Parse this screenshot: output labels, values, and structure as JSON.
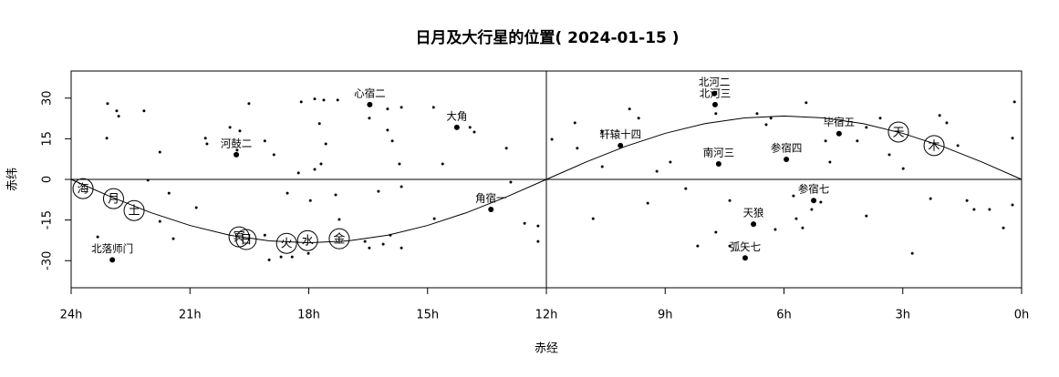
{
  "chart_data": {
    "type": "scatter",
    "title": "日月及大行星的位置( 2024-01-15 )",
    "x_label": "赤经",
    "y_label": "赤纬",
    "xlim": [
      24,
      0
    ],
    "ylim": [
      -40,
      40
    ],
    "xticks": [
      {
        "value": 24,
        "label": "24h"
      },
      {
        "value": 21,
        "label": "21h"
      },
      {
        "value": 18,
        "label": "18h"
      },
      {
        "value": 15,
        "label": "15h"
      },
      {
        "value": 12,
        "label": "12h"
      },
      {
        "value": 9,
        "label": "9h"
      },
      {
        "value": 6,
        "label": "6h"
      },
      {
        "value": 3,
        "label": "3h"
      },
      {
        "value": 0,
        "label": "0h"
      }
    ],
    "yticks": [
      -30,
      -15,
      0,
      15,
      30
    ],
    "reference_lines": {
      "x": 12,
      "y": 0
    },
    "color": "#000000",
    "ecliptic": {
      "x": [
        0,
        1,
        2,
        3,
        4,
        5,
        6,
        7,
        8,
        9,
        10,
        11,
        12,
        13,
        14,
        15,
        16,
        17,
        18,
        19,
        20,
        21,
        22,
        23,
        24
      ],
      "y": [
        0,
        6.4,
        12.2,
        17.0,
        20.6,
        22.7,
        23.4,
        22.7,
        20.6,
        17.0,
        12.2,
        6.4,
        0,
        -6.4,
        -12.2,
        -17.0,
        -20.6,
        -22.7,
        -23.4,
        -22.7,
        -20.6,
        -17.0,
        -12.2,
        -6.4,
        0
      ]
    },
    "background": {
      "x": [
        23.08,
        22.85,
        22.8,
        22.16,
        23.1,
        21.76,
        22.06,
        21.53,
        21.76,
        21.42,
        23.33,
        20.84,
        20.61,
        20.57,
        19.99,
        19.74,
        19.81,
        19.11,
        19.51,
        18.88,
        18.19,
        17.85,
        17.62,
        17.27,
        17.73,
        17.57,
        17.85,
        17.69,
        18.26,
        18.54,
        17.96,
        17.32,
        17.23,
        19.11,
        19.0,
        18.7,
        18.42,
        18.01,
        16.47,
        16.01,
        16.01,
        15.66,
        15.89,
        15.71,
        16.24,
        15.66,
        15.94,
        16.12,
        16.58,
        16.47,
        15.66,
        14.83,
        14.85,
        14.62,
        13.93,
        13.82,
        13.01,
        12.9,
        12.55,
        12.21,
        12.21,
        11.86,
        11.28,
        11.22,
        10.59,
        10.59,
        10.82,
        9.9,
        9.67,
        9.44,
        9.21,
        8.87,
        8.48,
        8.18,
        7.72,
        7.37,
        6.68,
        6.45,
        6.33,
        6.22,
        5.76,
        5.69,
        5.53,
        5.3,
        5.07,
        5.44,
        4.84,
        4.15,
        3.92,
        3.57,
        3.34,
        2.99,
        2.3,
        2.07,
        1.89,
        1.61,
        1.38,
        1.2,
        0.81,
        0.46,
        0.18,
        0.23,
        0.23,
        2.76,
        7.72,
        7.37,
        3.92,
        4.95
      ],
      "y": [
        28.0,
        25.3,
        23.3,
        25.3,
        15.2,
        10.1,
        -0.3,
        -5.1,
        -15.5,
        -21.9,
        -21.2,
        -10.4,
        15.2,
        13.1,
        19.2,
        17.9,
        10.8,
        14.2,
        28.0,
        9.1,
        28.6,
        29.7,
        29.3,
        29.3,
        20.6,
        13.1,
        3.7,
        5.7,
        2.4,
        -5.1,
        -7.8,
        -5.7,
        -14.8,
        -20.6,
        -29.7,
        -28.6,
        -28.6,
        -27.3,
        22.6,
        26.0,
        18.2,
        26.6,
        14.2,
        5.7,
        -4.4,
        -2.7,
        -20.6,
        -23.9,
        -22.9,
        -25.3,
        -25.3,
        -14.5,
        26.6,
        5.7,
        19.2,
        17.5,
        11.5,
        -1.0,
        -16.2,
        -17.2,
        -22.9,
        14.8,
        20.9,
        11.5,
        17.5,
        4.7,
        -14.5,
        26.0,
        22.6,
        -8.8,
        3.0,
        6.4,
        -3.4,
        -24.6,
        -19.5,
        -7.8,
        24.3,
        20.2,
        22.6,
        -18.5,
        -6.1,
        -14.5,
        -17.9,
        -11.1,
        -8.4,
        28.3,
        6.4,
        14.2,
        19.2,
        22.6,
        9.1,
        4.0,
        -7.1,
        23.6,
        20.9,
        12.5,
        -7.8,
        -11.1,
        -11.1,
        -17.9,
        28.6,
        15.2,
        -9.4,
        -27.3,
        24.3,
        -24.6,
        -13.5,
        14.2
      ]
    },
    "stars": {
      "names": [
        "北落师门",
        "河鼓二",
        "心宿二",
        "大角",
        "角宿一",
        "北河二",
        "北河三",
        "轩辕十四",
        "南河三",
        "毕宿五",
        "参宿四",
        "参宿七",
        "天狼",
        "弧矢七"
      ],
      "x": [
        22.96,
        19.83,
        16.46,
        14.26,
        13.4,
        7.76,
        7.74,
        10.13,
        7.65,
        4.61,
        5.94,
        5.25,
        6.77,
        6.98
      ],
      "y": [
        -29.7,
        9.1,
        27.6,
        19.2,
        -11.1,
        31.7,
        27.6,
        12.5,
        5.7,
        16.9,
        7.4,
        -7.8,
        -16.5,
        -29.0
      ]
    },
    "planets": {
      "names": [
        "海",
        "月",
        "土",
        "冥",
        "日",
        "火",
        "水",
        "金",
        "天",
        "木"
      ],
      "x": [
        23.7,
        22.93,
        22.41,
        19.76,
        19.58,
        18.56,
        18.03,
        17.23,
        3.11,
        2.21
      ],
      "y": [
        -3.4,
        -7.1,
        -11.5,
        -21.2,
        -22.2,
        -23.6,
        -22.6,
        -21.9,
        17.5,
        12.5
      ]
    }
  }
}
